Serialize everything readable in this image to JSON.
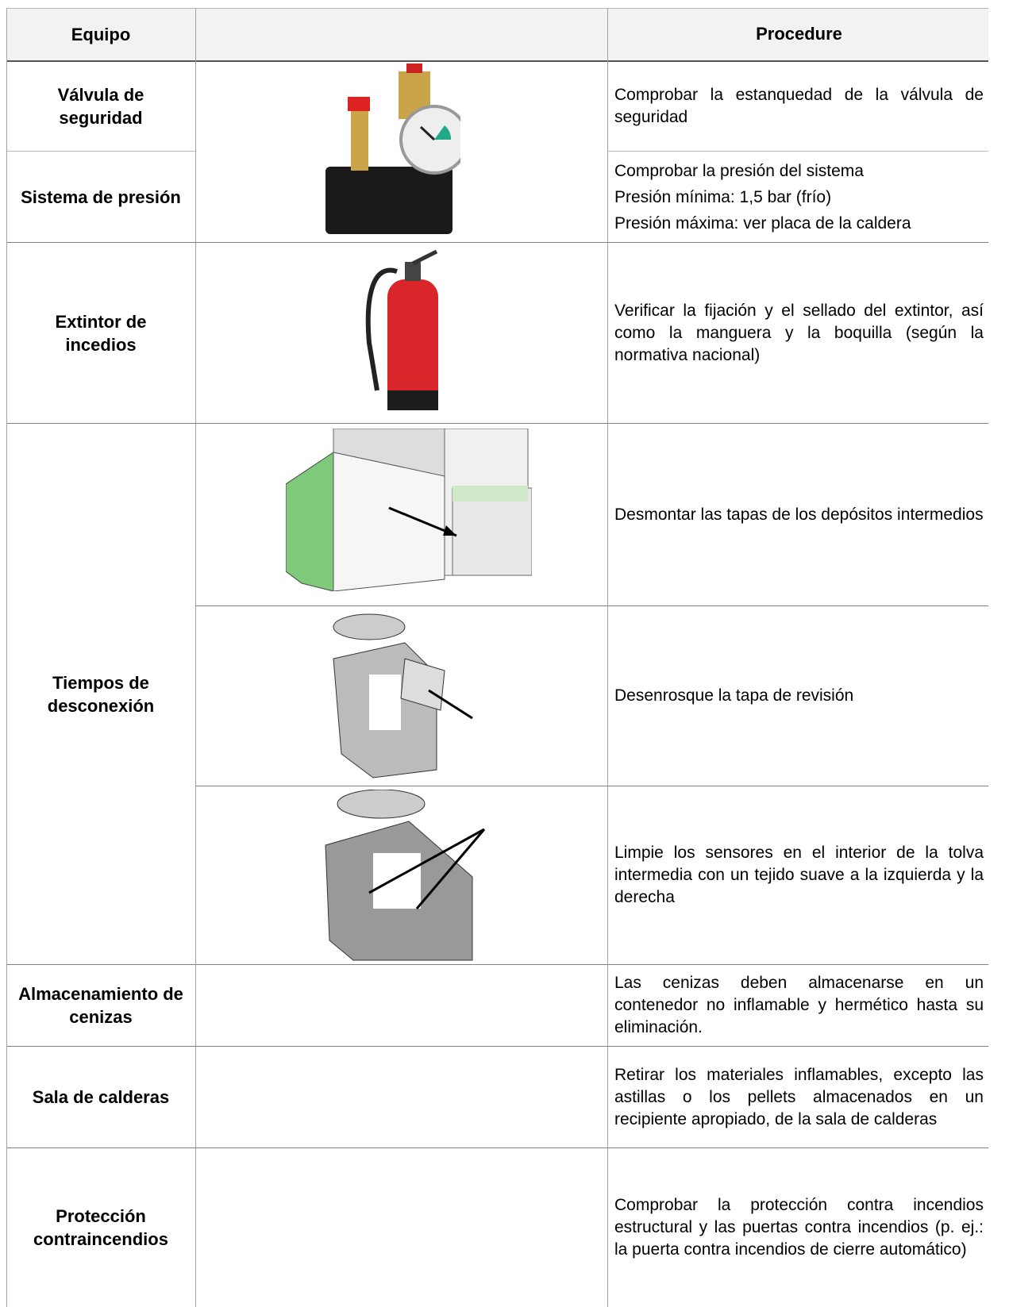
{
  "header": {
    "equipment": "Equipo",
    "procedure": "Procedure"
  },
  "rows": [
    {
      "equipment": "Válvula de seguridad",
      "procedure": [
        "Comprobar la estanquedad de la válvula de seguridad"
      ]
    },
    {
      "equipment": "Sistema de presión",
      "procedure": [
        "Comprobar la presión del sistema",
        "Presión mínima: 1,5 bar (frío)",
        "Presión máxima: ver placa de la caldera"
      ]
    },
    {
      "equipment": "Extintor de incedios",
      "procedure": [
        "Verificar la fijación y el sellado del extintor, así como la manguera y la boquilla (según la normativa nacional)"
      ]
    },
    {
      "equipment": "Tiempos de desconexión",
      "procedure": [
        "Desmontar las tapas de los depósitos intermedios",
        "Desenrosque la tapa de revisión",
        "Limpie los sensores en el interior de la tolva intermedia con un tejido suave a la izquierda y la derecha"
      ]
    },
    {
      "equipment": "Almacenamiento de cenizas",
      "procedure": [
        "Las cenizas deben almacenarse en un contenedor no inflamable y hermético hasta su eliminación."
      ]
    },
    {
      "equipment": "Sala de calderas",
      "procedure": [
        "Retirar los materiales inflamables, excepto las astillas o los pellets almacenados en un recipiente apropiado, de la sala de calderas"
      ]
    },
    {
      "equipment": "Protección contraincendios",
      "procedure": [
        "Comprobar la protección contra incendios estructural y las puertas contra incendios (p. ej.: la puerta contra incendios de cierre automático)"
      ]
    }
  ]
}
